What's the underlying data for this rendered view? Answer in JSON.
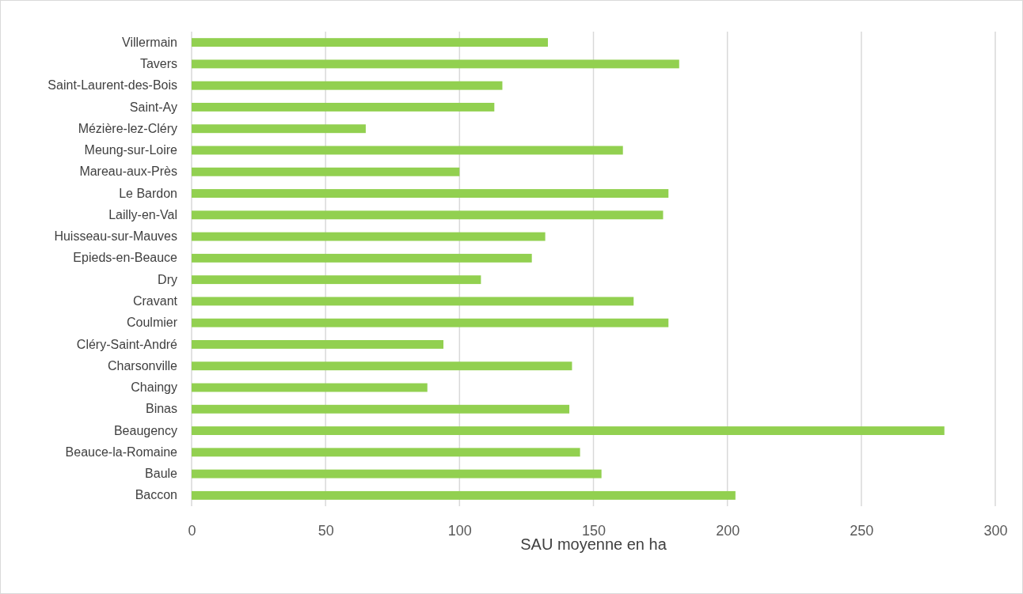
{
  "chart_data": {
    "type": "bar",
    "orientation": "horizontal",
    "xlabel": "SAU moyenne en ha",
    "categories": [
      "Villermain",
      "Tavers",
      "Saint-Laurent-des-Bois",
      "Saint-Ay",
      "Mézière-lez-Cléry",
      "Meung-sur-Loire",
      "Mareau-aux-Près",
      "Le Bardon",
      "Lailly-en-Val",
      "Huisseau-sur-Mauves",
      "Epieds-en-Beauce",
      "Dry",
      "Cravant",
      "Coulmier",
      "Cléry-Saint-André",
      "Charsonville",
      "Chaingy",
      "Binas",
      "Beaugency",
      "Beauce-la-Romaine",
      "Baule",
      "Baccon"
    ],
    "values": [
      133,
      182,
      116,
      113,
      65,
      161,
      100,
      178,
      176,
      132,
      127,
      108,
      165,
      178,
      94,
      142,
      88,
      141,
      281,
      145,
      153,
      203
    ],
    "color": "#92d050",
    "xlim": [
      0,
      300
    ],
    "xticks": [
      0,
      50,
      100,
      150,
      200,
      250,
      300
    ],
    "grid": "x"
  }
}
